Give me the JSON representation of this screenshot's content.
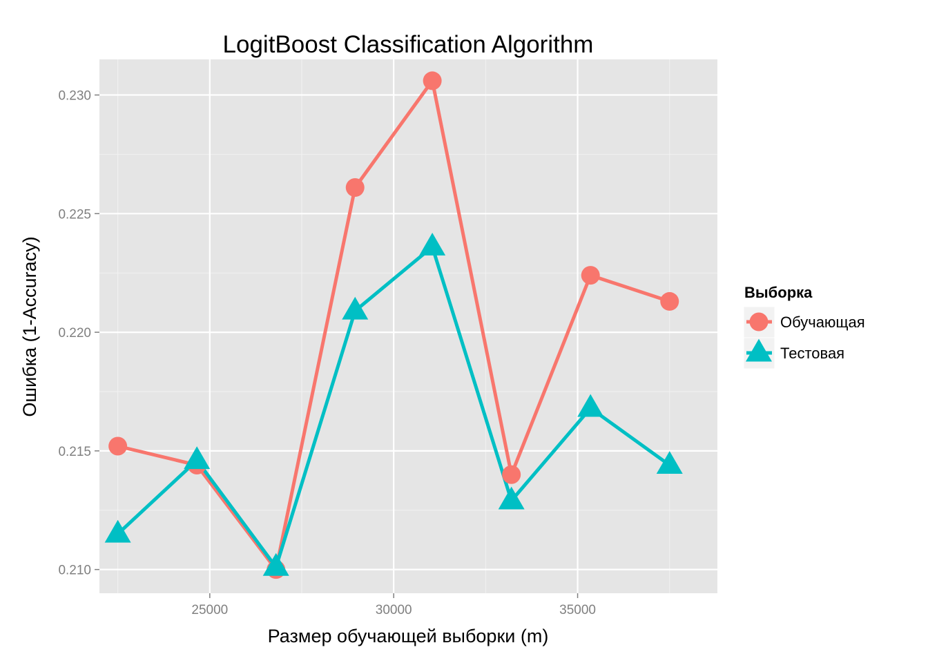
{
  "chart_data": {
    "type": "line",
    "title": "LogitBoost Classification Algorithm",
    "xlabel": "Размер обучающей выборки (m)",
    "ylabel": "Ошибка (1-Accuracy)",
    "xlim": [
      22000,
      38800
    ],
    "ylim": [
      0.209,
      0.2315
    ],
    "x_ticks": [
      25000,
      30000,
      35000
    ],
    "x_tick_labels": [
      "25000",
      "30000",
      "35000"
    ],
    "y_ticks": [
      0.21,
      0.215,
      0.22,
      0.225,
      0.23
    ],
    "y_tick_labels": [
      "0.210",
      "0.215",
      "0.220",
      "0.225",
      "0.230"
    ],
    "grid": true,
    "legend": {
      "title": "Выборка",
      "position": "right"
    },
    "x": [
      22500,
      24650,
      26800,
      28950,
      31050,
      33200,
      35350,
      37500
    ],
    "series": [
      {
        "name": "Обучающая",
        "color": "#F8766D",
        "marker": "circle",
        "values": [
          0.2152,
          0.2144,
          0.21,
          0.2261,
          0.2306,
          0.214,
          0.2224,
          0.2213
        ]
      },
      {
        "name": "Тестовая",
        "color": "#00BFC4",
        "marker": "triangle",
        "values": [
          0.2115,
          0.2146,
          0.2101,
          0.2209,
          0.2236,
          0.2129,
          0.2168,
          0.2144
        ]
      }
    ]
  }
}
